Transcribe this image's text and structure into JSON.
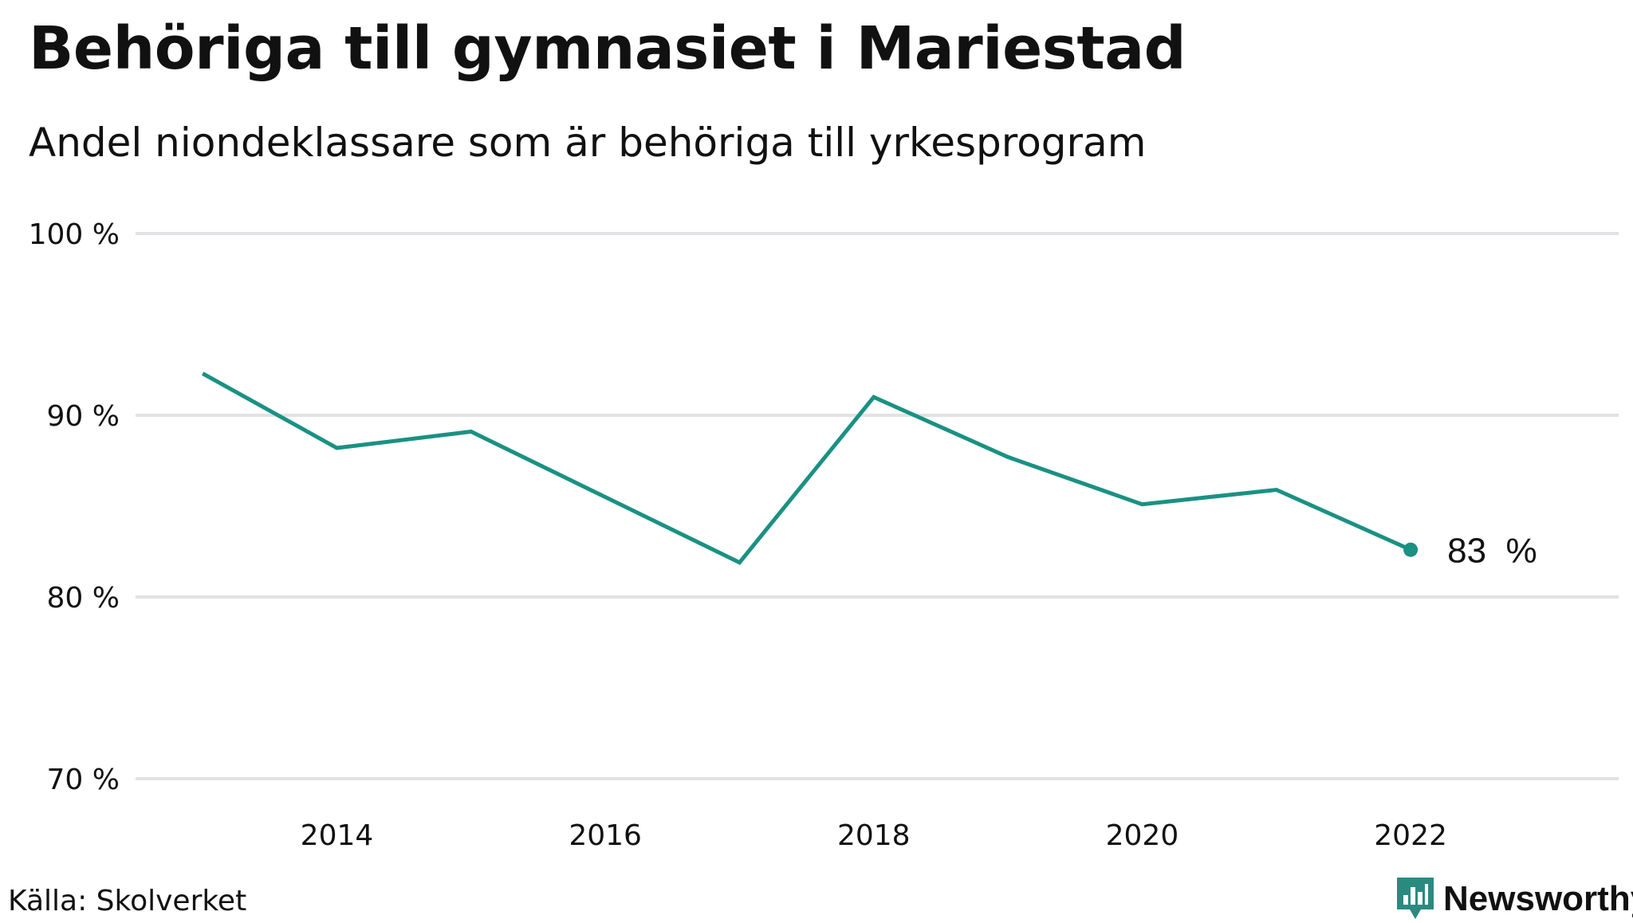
{
  "chart_data": {
    "type": "line",
    "title": "Behöriga till gymnasiet i Mariestad",
    "subtitle": "Andel niondeklassare som är behöriga till yrkesprogram",
    "x": [
      2013,
      2014,
      2015,
      2016,
      2017,
      2018,
      2019,
      2020,
      2021,
      2022
    ],
    "x_tick_values": [
      2014,
      2016,
      2018,
      2020,
      2022
    ],
    "x_tick_labels": [
      "2014",
      "2016",
      "2018",
      "2020",
      "2022"
    ],
    "xlim": [
      2012.5,
      2023.55
    ],
    "y_tick_values": [
      100,
      90,
      80,
      70
    ],
    "y_tick_labels": [
      "100 %",
      "90 %",
      "80 %",
      "70 %"
    ],
    "ylim": [
      70,
      100
    ],
    "grid": true,
    "series": [
      {
        "values": [
          92.3,
          88.2,
          89.1,
          85.5,
          81.9,
          91.0,
          87.7,
          85.1,
          85.9,
          82.6
        ]
      }
    ],
    "end_label": "83  %",
    "colors": {
      "line": "#1a9183",
      "grid": "#e2e2e6",
      "text": "#111111"
    }
  },
  "footer": {
    "source": "Källa: Skolverket",
    "brand": "Newsworthy",
    "brand_icon": "newsworthy-logo-icon",
    "brand_color": "#2b8a80"
  }
}
